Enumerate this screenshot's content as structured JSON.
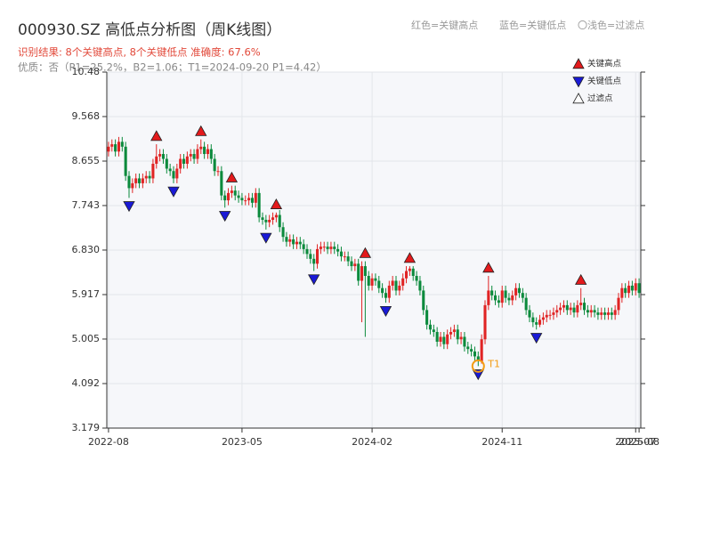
{
  "chart_data": {
    "type": "candlestick",
    "title": "000930.SZ 高低点分析图（周K线图）",
    "subtitle": "识别结果: 8个关键高点, 8个关键低点  准确度: 67.6%",
    "note": "优质：否（P1=25.2%，B2=1.06；T1=2024-09-20 P1=4.42）",
    "header_legend": [
      "红色=关键高点",
      "蓝色=关键低点",
      "〇浅色=过滤点"
    ],
    "categories": [
      "2022-08",
      null,
      null,
      null,
      null,
      null,
      null,
      null,
      null,
      null,
      null,
      null,
      null,
      null,
      null,
      null,
      null,
      null,
      null,
      null,
      null,
      null,
      null,
      null,
      null,
      null,
      null,
      null,
      null,
      null,
      null,
      null,
      null,
      null,
      null,
      null,
      null,
      null,
      null,
      "2023-05",
      null,
      null,
      null,
      null,
      null,
      null,
      null,
      null,
      null,
      null,
      null,
      null,
      null,
      null,
      null,
      null,
      null,
      null,
      null,
      null,
      null,
      null,
      null,
      null,
      null,
      null,
      null,
      null,
      null,
      null,
      null,
      null,
      null,
      null,
      null,
      null,
      null,
      "2024-02",
      null,
      null,
      null,
      null,
      null,
      null,
      null,
      null,
      null,
      null,
      null,
      null,
      null,
      null,
      null,
      null,
      null,
      null,
      null,
      null,
      null,
      null,
      null,
      null,
      null,
      null,
      null,
      null,
      null,
      null,
      null,
      null,
      null,
      null,
      null,
      null,
      null,
      "2024-11",
      null,
      null,
      null,
      null,
      null,
      null,
      null,
      null,
      null,
      null,
      null,
      null,
      null,
      null,
      null,
      null,
      null,
      null,
      null,
      null,
      null,
      null,
      null,
      null,
      null,
      null,
      null,
      null,
      null,
      null,
      null,
      null,
      null,
      null,
      null,
      null,
      null,
      null,
      "2025-07",
      "2025-08"
    ],
    "candles": {
      "open": [
        8.85,
        8.95,
        9.0,
        8.85,
        9.05,
        8.95,
        8.35,
        8.1,
        8.2,
        8.3,
        8.2,
        8.3,
        8.35,
        8.3,
        8.6,
        8.75,
        8.8,
        8.7,
        8.5,
        8.45,
        8.3,
        8.5,
        8.7,
        8.6,
        8.75,
        8.8,
        8.7,
        8.9,
        8.95,
        8.8,
        8.9,
        8.7,
        8.45,
        8.45,
        7.95,
        7.85,
        8.0,
        8.05,
        7.95,
        7.9,
        7.85,
        7.85,
        7.9,
        7.8,
        8.0,
        7.5,
        7.45,
        7.4,
        7.45,
        7.5,
        7.55,
        7.3,
        7.1,
        7.0,
        7.05,
        6.95,
        7.0,
        6.95,
        6.85,
        6.75,
        6.65,
        6.55,
        6.85,
        6.9,
        6.9,
        6.85,
        6.9,
        6.85,
        6.8,
        6.7,
        6.7,
        6.6,
        6.5,
        6.55,
        6.2,
        6.5,
        6.3,
        6.1,
        6.25,
        6.2,
        6.05,
        5.95,
        5.85,
        6.1,
        6.2,
        6.0,
        6.1,
        6.25,
        6.4,
        6.45,
        6.3,
        6.2,
        6.0,
        5.6,
        5.3,
        5.2,
        5.15,
        4.95,
        5.05,
        4.9,
        5.1,
        5.15,
        5.2,
        5.0,
        5.05,
        4.85,
        4.8,
        4.75,
        4.65,
        4.55,
        5.0,
        5.7,
        6.0,
        5.9,
        5.8,
        5.75,
        6.0,
        5.85,
        5.8,
        5.9,
        6.05,
        5.95,
        5.85,
        5.6,
        5.45,
        5.35,
        5.3,
        5.4,
        5.45,
        5.5,
        5.5,
        5.55,
        5.6,
        5.65,
        5.7,
        5.6,
        5.65,
        5.55,
        5.7,
        5.75,
        5.6,
        5.55,
        5.6,
        5.55,
        5.5,
        5.55,
        5.5,
        5.55,
        5.5,
        5.6,
        5.85,
        6.05,
        5.95,
        6.1,
        6.0,
        6.15
      ],
      "high": [
        9.05,
        9.1,
        9.1,
        9.15,
        9.15,
        9.05,
        8.45,
        8.3,
        8.4,
        8.4,
        8.4,
        8.45,
        8.45,
        8.7,
        9.0,
        8.9,
        8.9,
        8.8,
        8.6,
        8.55,
        8.6,
        8.8,
        8.8,
        8.85,
        8.9,
        8.9,
        9.0,
        9.1,
        9.05,
        9.0,
        9.0,
        8.8,
        8.55,
        8.55,
        8.05,
        8.1,
        8.15,
        8.15,
        8.05,
        8.0,
        7.95,
        8.0,
        8.0,
        8.1,
        8.1,
        7.6,
        7.55,
        7.55,
        7.6,
        7.6,
        7.65,
        7.4,
        7.2,
        7.15,
        7.15,
        7.1,
        7.1,
        7.05,
        6.95,
        6.85,
        6.75,
        6.95,
        7.0,
        7.0,
        7.0,
        7.0,
        7.0,
        6.95,
        6.9,
        6.8,
        6.8,
        6.7,
        6.65,
        6.65,
        6.6,
        6.6,
        6.4,
        6.35,
        6.35,
        6.3,
        6.15,
        6.05,
        6.2,
        6.3,
        6.3,
        6.2,
        6.35,
        6.5,
        6.5,
        6.5,
        6.4,
        6.3,
        6.1,
        5.7,
        5.4,
        5.3,
        5.25,
        5.15,
        5.15,
        5.2,
        5.25,
        5.3,
        5.3,
        5.15,
        5.15,
        4.95,
        4.9,
        4.85,
        4.75,
        5.1,
        5.8,
        6.3,
        6.1,
        6.0,
        5.9,
        6.1,
        6.1,
        5.95,
        6.0,
        6.15,
        6.15,
        6.05,
        5.95,
        5.7,
        5.55,
        5.45,
        5.5,
        5.55,
        5.6,
        5.6,
        5.65,
        5.7,
        5.75,
        5.8,
        5.8,
        5.75,
        5.75,
        5.8,
        6.05,
        5.85,
        5.7,
        5.7,
        5.7,
        5.65,
        5.65,
        5.65,
        5.65,
        5.65,
        5.7,
        5.95,
        6.15,
        6.15,
        6.2,
        6.2,
        6.25,
        6.25
      ],
      "low": [
        8.75,
        8.85,
        8.75,
        8.75,
        8.85,
        8.25,
        7.9,
        8.0,
        8.1,
        8.1,
        8.1,
        8.2,
        8.2,
        8.2,
        8.5,
        8.65,
        8.6,
        8.4,
        8.35,
        8.2,
        8.2,
        8.4,
        8.5,
        8.5,
        8.65,
        8.6,
        8.6,
        8.8,
        8.7,
        8.7,
        8.6,
        8.35,
        8.35,
        7.85,
        7.7,
        7.75,
        7.9,
        7.85,
        7.8,
        7.75,
        7.75,
        7.75,
        7.7,
        7.7,
        7.4,
        7.35,
        7.25,
        7.3,
        7.35,
        7.4,
        7.2,
        7.0,
        6.9,
        6.9,
        6.85,
        6.85,
        6.85,
        6.75,
        6.65,
        6.55,
        6.4,
        6.45,
        6.75,
        6.8,
        6.75,
        6.75,
        6.75,
        6.7,
        6.6,
        6.6,
        6.5,
        6.4,
        6.4,
        6.1,
        5.35,
        5.05,
        6.0,
        6.0,
        6.1,
        5.95,
        5.85,
        5.75,
        5.75,
        6.0,
        5.9,
        5.9,
        6.0,
        6.15,
        6.3,
        6.2,
        6.1,
        5.9,
        5.5,
        5.2,
        5.1,
        5.05,
        4.85,
        4.85,
        4.8,
        4.8,
        5.0,
        5.05,
        4.9,
        4.9,
        4.75,
        4.7,
        4.65,
        4.55,
        4.45,
        4.5,
        4.9,
        5.6,
        5.8,
        5.7,
        5.65,
        5.65,
        5.75,
        5.7,
        5.7,
        5.8,
        5.85,
        5.75,
        5.5,
        5.35,
        5.25,
        5.2,
        5.25,
        5.3,
        5.35,
        5.4,
        5.4,
        5.45,
        5.5,
        5.55,
        5.5,
        5.5,
        5.45,
        5.45,
        5.6,
        5.5,
        5.45,
        5.45,
        5.45,
        5.4,
        5.4,
        5.4,
        5.4,
        5.4,
        5.4,
        5.5,
        5.75,
        5.85,
        5.85,
        5.9,
        5.9,
        5.85
      ],
      "close": [
        8.95,
        9.0,
        8.85,
        9.05,
        8.95,
        8.35,
        8.1,
        8.2,
        8.3,
        8.2,
        8.3,
        8.35,
        8.3,
        8.6,
        8.75,
        8.8,
        8.7,
        8.5,
        8.45,
        8.3,
        8.5,
        8.7,
        8.6,
        8.75,
        8.8,
        8.7,
        8.9,
        8.95,
        8.8,
        8.9,
        8.7,
        8.45,
        8.45,
        7.95,
        7.85,
        8.0,
        8.05,
        7.95,
        7.9,
        7.85,
        7.85,
        7.9,
        7.8,
        8.0,
        7.5,
        7.45,
        7.4,
        7.45,
        7.5,
        7.55,
        7.3,
        7.1,
        7.0,
        7.05,
        6.95,
        7.0,
        6.95,
        6.85,
        6.75,
        6.65,
        6.55,
        6.85,
        6.9,
        6.9,
        6.85,
        6.9,
        6.85,
        6.8,
        6.7,
        6.7,
        6.6,
        6.5,
        6.55,
        6.2,
        6.5,
        6.3,
        6.1,
        6.25,
        6.2,
        6.05,
        5.95,
        5.85,
        6.1,
        6.2,
        6.0,
        6.1,
        6.25,
        6.4,
        6.45,
        6.3,
        6.2,
        6.0,
        5.6,
        5.3,
        5.2,
        5.15,
        4.95,
        5.05,
        4.9,
        5.1,
        5.15,
        5.2,
        5.0,
        5.05,
        4.85,
        4.8,
        4.75,
        4.65,
        4.55,
        5.0,
        5.7,
        6.0,
        5.9,
        5.8,
        5.75,
        6.0,
        5.85,
        5.8,
        5.9,
        6.05,
        5.95,
        5.85,
        5.6,
        5.45,
        5.35,
        5.3,
        5.4,
        5.45,
        5.5,
        5.5,
        5.55,
        5.6,
        5.65,
        5.7,
        5.6,
        5.65,
        5.55,
        5.7,
        5.75,
        5.6,
        5.55,
        5.6,
        5.55,
        5.5,
        5.55,
        5.5,
        5.55,
        5.5,
        5.6,
        5.85,
        6.05,
        5.95,
        6.1,
        6.0,
        6.15,
        5.95
      ]
    },
    "up_color": "#e02424",
    "down_color": "#0b8a3c",
    "markers": [
      {
        "name": "关键高点",
        "color": "#e31a1c",
        "shape": "up",
        "indices": [
          14,
          27,
          36,
          49,
          75,
          88,
          111,
          138
        ]
      },
      {
        "name": "关键低点",
        "color": "#1a1ad6",
        "shape": "down",
        "indices": [
          6,
          19,
          34,
          46,
          60,
          81,
          108,
          125
        ]
      },
      {
        "name": "过滤点",
        "color": "#ffffff",
        "shape": "up",
        "indices": []
      }
    ],
    "t1": {
      "label": "T1",
      "index": 108,
      "color": "#f39c12"
    },
    "ylim": [
      3.179,
      10.48
    ],
    "yticks": [
      3.179,
      4.092,
      5.005,
      5.917,
      {
        "value": 6.83,
        "label": "6.830"
      },
      7.743,
      8.655,
      9.568,
      10.48
    ],
    "grid": true
  }
}
